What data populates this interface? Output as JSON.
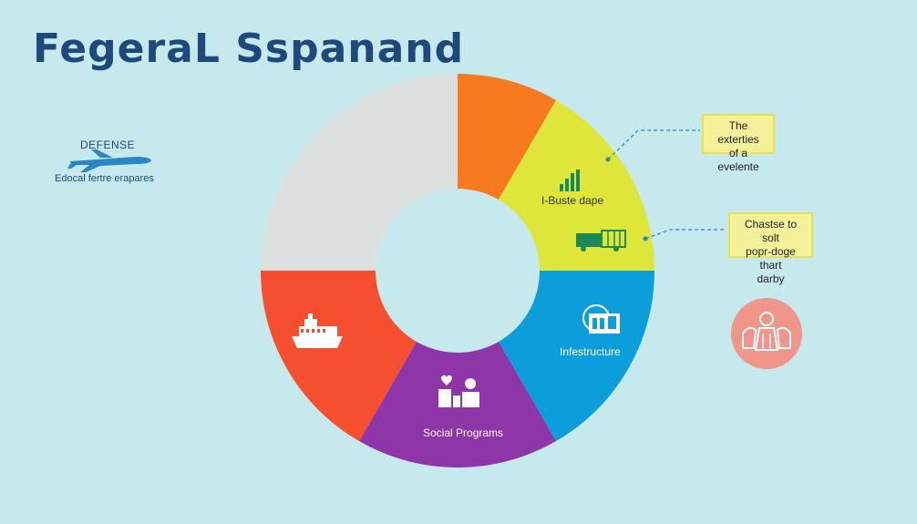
{
  "title": "FegeraL Sspanand",
  "left_callout": {
    "heading": "DEFENSE",
    "subtext": "Edocal fertre erapares",
    "icon": "airplane-icon"
  },
  "notes": [
    {
      "lines": [
        "The exterties",
        "of a evelente"
      ]
    },
    {
      "lines": [
        "Chastse to solt",
        "popr-doge thart",
        "darby"
      ]
    }
  ],
  "segment_labels": {
    "budget": "I-Buste dape",
    "infrastructure": "Infestructure",
    "social": "Social Programs"
  },
  "chart_data": {
    "type": "pie",
    "slices": [
      {
        "label": "",
        "color": "#f77a1e",
        "start_deg": 0,
        "end_deg": 30,
        "icon": ""
      },
      {
        "label": "I-Buste dape",
        "color": "#dee63a",
        "start_deg": 30,
        "end_deg": 90,
        "icon": "bar-chart-icon"
      },
      {
        "label": "Infestructure",
        "color": "#0c9edb",
        "start_deg": 90,
        "end_deg": 150,
        "icon": "building-icon"
      },
      {
        "label": "Social Programs",
        "color": "#8e35a8",
        "start_deg": 150,
        "end_deg": 210,
        "icon": "family-icon"
      },
      {
        "label": "",
        "color": "#f54f2f",
        "start_deg": 210,
        "end_deg": 270,
        "icon": "ship-icon"
      },
      {
        "label": "",
        "color": "#dbdfde",
        "start_deg": 270,
        "end_deg": 360,
        "icon": ""
      }
    ]
  },
  "badge": {
    "icon": "people-icon",
    "color": "#f0958a"
  }
}
